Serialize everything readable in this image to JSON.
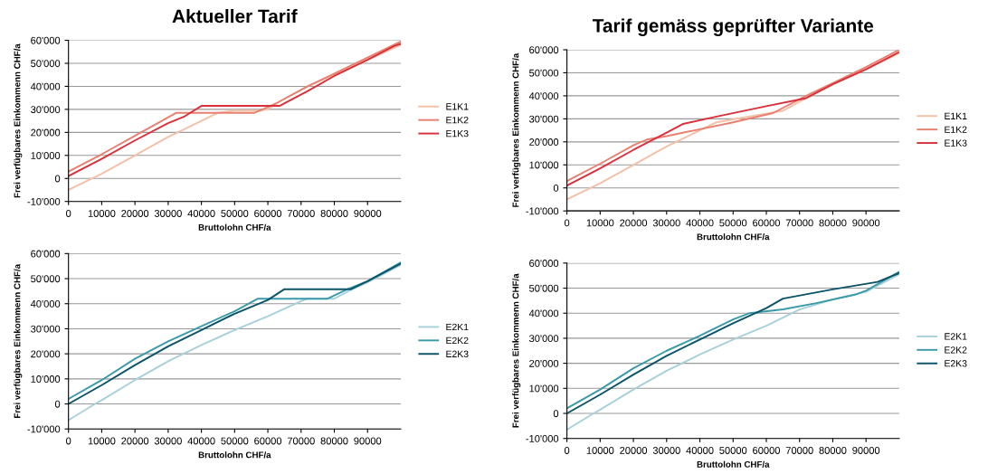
{
  "chart_data": [
    {
      "type": "line",
      "title": "Aktueller Tarif",
      "xlabel": "Bruttolohn CHF/a",
      "ylabel": "Frei verfügbares Einkommenn CHF/a",
      "xlim": [
        0,
        100000
      ],
      "ylim": [
        -10000,
        60000
      ],
      "xticks": [
        0,
        10000,
        20000,
        30000,
        40000,
        50000,
        60000,
        70000,
        80000,
        90000
      ],
      "yticks": [
        {
          "value": -10000,
          "label": "-10'000"
        },
        0,
        {
          "value": 10000,
          "label": "10'000"
        },
        {
          "value": 20000,
          "label": "20'000"
        },
        {
          "value": 30000,
          "label": "30'000"
        },
        {
          "value": 40000,
          "label": "40'000"
        },
        {
          "value": 50000,
          "label": "50'000"
        },
        {
          "value": 60000,
          "label": "60'000"
        }
      ],
      "grid": "y",
      "legend": "right",
      "marker": "none",
      "line_style": "solid",
      "series": [
        {
          "name": "E1K1",
          "color": "#f4c0a8",
          "x": [
            0,
            10000,
            20000,
            30000,
            35000,
            45000,
            50000,
            58000,
            60000,
            63000,
            72000,
            80000,
            90000,
            100000
          ],
          "values": [
            -5000,
            2000,
            10000,
            18000,
            21500,
            28500,
            29500,
            29500,
            30000,
            33000,
            40000,
            45000,
            51500,
            58000
          ]
        },
        {
          "name": "E1K2",
          "color": "#e88070",
          "x": [
            0,
            10000,
            20000,
            32500,
            56000,
            60000,
            63000,
            72000,
            80000,
            90000,
            100000
          ],
          "values": [
            3000,
            10500,
            18500,
            28500,
            28500,
            31000,
            33000,
            40000,
            45500,
            52500,
            59500
          ]
        },
        {
          "name": "E1K3",
          "color": "#d9303a",
          "x": [
            0,
            10000,
            20000,
            30000,
            35000,
            40000,
            63500,
            72000,
            80000,
            90000,
            98000,
            100000
          ],
          "values": [
            1000,
            8500,
            16500,
            24000,
            27000,
            31500,
            31500,
            38000,
            44500,
            51500,
            57500,
            58500
          ]
        }
      ]
    },
    {
      "type": "line",
      "title": "Tarif gemäss geprüfter Variante",
      "xlabel": "Bruttolohn CHF/a",
      "ylabel": "Frei verfügbares Einkommenn CHF/a",
      "xlim": [
        0,
        100000
      ],
      "ylim": [
        -10000,
        60000
      ],
      "xticks": [
        0,
        10000,
        20000,
        30000,
        40000,
        50000,
        60000,
        70000,
        80000,
        90000
      ],
      "yticks": [
        {
          "value": -10000,
          "label": "-10'000"
        },
        0,
        {
          "value": 10000,
          "label": "10'000"
        },
        {
          "value": 20000,
          "label": "20'000"
        },
        {
          "value": 30000,
          "label": "30'000"
        },
        {
          "value": 40000,
          "label": "40'000"
        },
        {
          "value": 50000,
          "label": "50'000"
        },
        {
          "value": 60000,
          "label": "60'000"
        }
      ],
      "grid": "y",
      "legend": "right",
      "marker": "none",
      "line_style": "solid",
      "series": [
        {
          "name": "E1K1",
          "color": "#f4c0a8",
          "x": [
            0,
            10000,
            20000,
            30000,
            35000,
            45000,
            55000,
            65000,
            72000,
            80000,
            90000,
            100000
          ],
          "values": [
            -5000,
            2000,
            10000,
            18000,
            21500,
            28500,
            31000,
            33500,
            39000,
            45000,
            51500,
            58500
          ]
        },
        {
          "name": "E1K2",
          "color": "#e88070",
          "x": [
            0,
            10000,
            20000,
            24000,
            30000,
            40000,
            50000,
            62000,
            72000,
            80000,
            90000,
            100000
          ],
          "values": [
            3000,
            10500,
            18500,
            21000,
            22500,
            25500,
            28500,
            32500,
            40000,
            45500,
            52500,
            60000
          ]
        },
        {
          "name": "E1K3",
          "color": "#d9303a",
          "x": [
            0,
            10000,
            20000,
            30000,
            35000,
            45000,
            60000,
            72000,
            80000,
            90000,
            98000,
            100000
          ],
          "values": [
            1000,
            8500,
            16500,
            24000,
            27800,
            31000,
            35500,
            39000,
            45000,
            51500,
            57500,
            59000
          ]
        }
      ]
    },
    {
      "type": "line",
      "xlabel": "Bruttolohn CHF/a",
      "ylabel": "Frei verfügbares Einkommenn CHF/a",
      "xlim": [
        0,
        100000
      ],
      "ylim": [
        -10000,
        60000
      ],
      "xticks": [
        0,
        10000,
        20000,
        30000,
        40000,
        50000,
        60000,
        70000,
        80000,
        90000
      ],
      "yticks": [
        {
          "value": -10000,
          "label": "-10'000"
        },
        0,
        {
          "value": 10000,
          "label": "10'000"
        },
        {
          "value": 20000,
          "label": "20'000"
        },
        {
          "value": 30000,
          "label": "30'000"
        },
        {
          "value": 40000,
          "label": "40'000"
        },
        {
          "value": 50000,
          "label": "50'000"
        },
        {
          "value": 60000,
          "label": "60'000"
        }
      ],
      "grid": "y",
      "legend": "right",
      "marker": "none",
      "line_style": "solid",
      "series": [
        {
          "name": "E2K1",
          "color": "#a8d0dc",
          "x": [
            0,
            8000,
            10000,
            20000,
            30000,
            40000,
            50000,
            60000,
            70000,
            72000,
            80000,
            85000,
            90000,
            100000
          ],
          "values": [
            -6500,
            0,
            1500,
            9500,
            17000,
            23500,
            29500,
            35000,
            41000,
            42000,
            42000,
            45500,
            48500,
            55500
          ]
        },
        {
          "name": "E2K2",
          "color": "#3a9aa8",
          "x": [
            0,
            10000,
            20000,
            30000,
            40000,
            50000,
            57000,
            78000,
            84000,
            90000,
            100000
          ],
          "values": [
            2000,
            9500,
            18000,
            25000,
            31000,
            37000,
            42000,
            42000,
            45800,
            49000,
            56500
          ]
        },
        {
          "name": "E2K3",
          "color": "#0a5468",
          "x": [
            0,
            10000,
            20000,
            30000,
            40000,
            50000,
            60000,
            65000,
            85000,
            90000,
            100000
          ],
          "values": [
            0,
            7500,
            15500,
            23000,
            29500,
            36000,
            41500,
            45800,
            45800,
            49000,
            56000
          ]
        }
      ]
    },
    {
      "type": "line",
      "xlabel": "Bruttolohn CHF/a",
      "ylabel": "Frei verfügbares Einkommenn CHF/a",
      "xlim": [
        0,
        100000
      ],
      "ylim": [
        -10000,
        60000
      ],
      "xticks": [
        0,
        10000,
        20000,
        30000,
        40000,
        50000,
        60000,
        70000,
        80000,
        90000
      ],
      "yticks": [
        {
          "value": -10000,
          "label": "-10'000"
        },
        0,
        {
          "value": 10000,
          "label": "10'000"
        },
        {
          "value": 20000,
          "label": "20'000"
        },
        {
          "value": 30000,
          "label": "30'000"
        },
        {
          "value": 40000,
          "label": "40'000"
        },
        {
          "value": 50000,
          "label": "50'000"
        },
        {
          "value": 60000,
          "label": "60'000"
        }
      ],
      "grid": "y",
      "legend": "right",
      "marker": "none",
      "line_style": "solid",
      "series": [
        {
          "name": "E2K1",
          "color": "#a8d0dc",
          "x": [
            0,
            8000,
            10000,
            20000,
            30000,
            40000,
            50000,
            60000,
            70000,
            80000,
            90000,
            100000
          ],
          "values": [
            -6500,
            0,
            1500,
            9500,
            17000,
            23500,
            29500,
            35000,
            41500,
            45500,
            48500,
            55500
          ]
        },
        {
          "name": "E2K2",
          "color": "#3a9aa8",
          "x": [
            0,
            10000,
            20000,
            30000,
            40000,
            50000,
            55000,
            65000,
            75000,
            87000,
            90000,
            100000
          ],
          "values": [
            2000,
            9500,
            18000,
            25000,
            31000,
            37500,
            40000,
            41500,
            44000,
            47500,
            49000,
            56500
          ]
        },
        {
          "name": "E2K3",
          "color": "#0a5468",
          "x": [
            0,
            10000,
            20000,
            30000,
            40000,
            50000,
            60000,
            65000,
            80000,
            93500,
            100000
          ],
          "values": [
            0,
            7500,
            15500,
            23000,
            29500,
            36000,
            42000,
            45800,
            49500,
            52500,
            56000
          ]
        }
      ]
    }
  ]
}
